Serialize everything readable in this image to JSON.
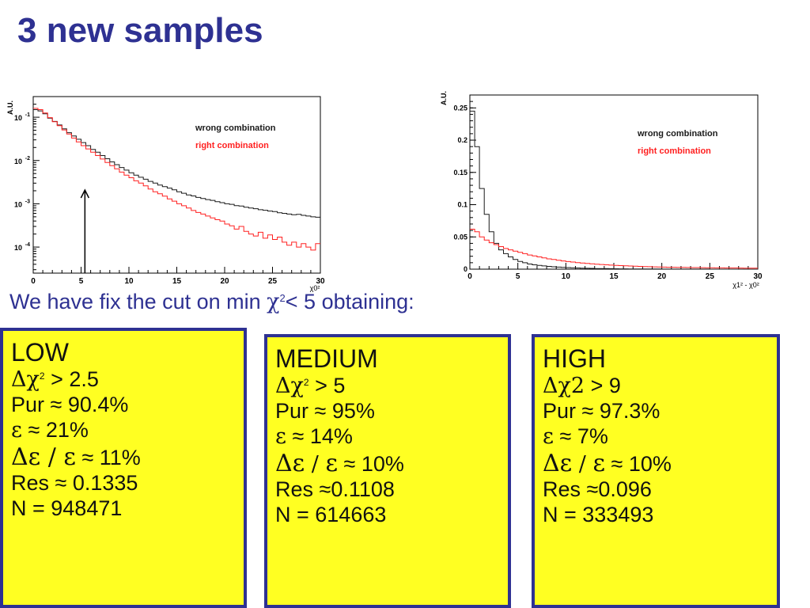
{
  "slide": {
    "title": "3 new samples",
    "subtitle": {
      "text_before": "We have fix the cut on min ",
      "chi": "χ",
      "exponent": "2",
      "text_after": "< 5 obtaining:"
    }
  },
  "chart_data": [
    {
      "type": "line",
      "ylabel": "A.U.",
      "xlabel": "χ0²",
      "yscale": "log",
      "xlim": [
        0,
        30
      ],
      "ylim": [
        2.5e-05,
        0.3
      ],
      "xticks": [
        0,
        5,
        10,
        15,
        20,
        25,
        30
      ],
      "xtick_labels": [
        "0",
        "5",
        "10",
        "15",
        "20",
        "25",
        "30"
      ],
      "ytick_values": [
        0.1,
        0.01,
        0.001,
        0.0001
      ],
      "ytick_labels": [
        {
          "base": "10",
          "exp": "-1"
        },
        {
          "base": "10",
          "exp": "-2"
        },
        {
          "base": "10",
          "exp": "-3"
        },
        {
          "base": "10",
          "exp": "-4"
        }
      ],
      "legend_placement": "top-right",
      "annotation": {
        "type": "arrow",
        "x": 5.4
      },
      "series": [
        {
          "name": "wrong combination",
          "color": "#1a1a1a",
          "x": [
            0,
            0.5,
            1,
            1.5,
            2,
            2.5,
            3,
            3.5,
            4,
            4.5,
            5,
            5.5,
            6,
            6.5,
            7,
            7.5,
            8,
            8.5,
            9,
            9.5,
            10,
            10.5,
            11,
            11.5,
            12,
            12.5,
            13,
            13.5,
            14,
            14.5,
            15,
            15.5,
            16,
            16.5,
            17,
            17.5,
            18,
            18.5,
            19,
            19.5,
            20,
            20.5,
            21,
            21.5,
            22,
            22.5,
            23,
            23.5,
            24,
            24.5,
            25,
            25.5,
            26,
            26.5,
            27,
            27.5,
            28,
            28.5,
            29,
            29.5
          ],
          "values": [
            0.15,
            0.14,
            0.12,
            0.095,
            0.08,
            0.066,
            0.054,
            0.044,
            0.037,
            0.031,
            0.026,
            0.022,
            0.018,
            0.0155,
            0.013,
            0.011,
            0.0093,
            0.008,
            0.0069,
            0.006,
            0.0052,
            0.0046,
            0.0041,
            0.0037,
            0.0033,
            0.003,
            0.0027,
            0.0025,
            0.0023,
            0.0021,
            0.0019,
            0.00175,
            0.0016,
            0.00152,
            0.0014,
            0.00132,
            0.00125,
            0.0012,
            0.00112,
            0.00106,
            0.001,
            0.00097,
            0.00091,
            0.00089,
            0.00083,
            0.0008,
            0.00077,
            0.00073,
            0.00071,
            0.00068,
            0.00066,
            0.00062,
            0.0006,
            0.00058,
            0.00056,
            0.00057,
            0.00054,
            0.00052,
            0.0005,
            0.00049
          ]
        },
        {
          "name": "right combination",
          "color": "#ff2020",
          "x": [
            0,
            0.5,
            1,
            1.5,
            2,
            2.5,
            3,
            3.5,
            4,
            4.5,
            5,
            5.5,
            6,
            6.5,
            7,
            7.5,
            8,
            8.5,
            9,
            9.5,
            10,
            10.5,
            11,
            11.5,
            12,
            12.5,
            13,
            13.5,
            14,
            14.5,
            15,
            15.5,
            16,
            16.5,
            17,
            17.5,
            18,
            18.5,
            19,
            19.5,
            20,
            20.5,
            21,
            21.5,
            22,
            22.5,
            23,
            23.5,
            24,
            24.5,
            25,
            25.5,
            26,
            26.5,
            27,
            27.5,
            28,
            28.5,
            29,
            29.5
          ],
          "values": [
            0.16,
            0.15,
            0.125,
            0.098,
            0.079,
            0.064,
            0.051,
            0.041,
            0.033,
            0.027,
            0.022,
            0.0185,
            0.0155,
            0.013,
            0.0108,
            0.009,
            0.0076,
            0.0064,
            0.0054,
            0.0046,
            0.004,
            0.0034,
            0.003,
            0.0026,
            0.0022,
            0.0019,
            0.0017,
            0.0015,
            0.0013,
            0.00115,
            0.001,
            0.0009,
            0.0008,
            0.0007,
            0.00063,
            0.00058,
            0.00052,
            0.00047,
            0.00043,
            0.0004,
            0.00034,
            0.00031,
            0.00026,
            0.0003,
            0.00023,
            0.0002,
            0.00018,
            0.00022,
            0.00016,
            0.00019,
            0.00015,
            0.00017,
            0.00013,
            0.00011,
            0.00013,
            0.0001,
            0.00012,
            0.0001,
            8.5e-05,
            0.00012
          ]
        }
      ]
    },
    {
      "type": "line",
      "ylabel": "A.U.",
      "xlabel": "χ1² - χ0²",
      "xlim": [
        0,
        30
      ],
      "ylim": [
        0,
        0.27
      ],
      "xticks": [
        0,
        5,
        10,
        15,
        20,
        25,
        30
      ],
      "xtick_labels": [
        "0",
        "5",
        "10",
        "15",
        "20",
        "25",
        "30"
      ],
      "yticks": [
        0,
        0.05,
        0.1,
        0.15,
        0.2,
        0.25
      ],
      "ytick_labels": [
        "0",
        "0.05",
        "0.1",
        "0.15",
        "0.2",
        "0.25"
      ],
      "legend_placement": "top-right",
      "series": [
        {
          "name": "wrong combination",
          "color": "#1a1a1a",
          "x": [
            0,
            0.5,
            1,
            1.5,
            2,
            2.5,
            3,
            3.5,
            4,
            4.5,
            5,
            5.5,
            6,
            6.5,
            7,
            7.5,
            8,
            8.5,
            9,
            9.5,
            10,
            10.5,
            11,
            11.5,
            12,
            12.5,
            13,
            13.5,
            14,
            14.5,
            15,
            15.5,
            16,
            16.5,
            17,
            17.5,
            18,
            18.5,
            19,
            19.5,
            20,
            20.5,
            21,
            21.5,
            22,
            22.5,
            23,
            23.5,
            24,
            24.5,
            25,
            25.5,
            26,
            26.5,
            27,
            27.5,
            28,
            28.5,
            29,
            29.5
          ],
          "values": [
            0.245,
            0.19,
            0.125,
            0.085,
            0.058,
            0.04,
            0.03,
            0.024,
            0.019,
            0.015,
            0.012,
            0.01,
            0.008,
            0.0068,
            0.0058,
            0.005,
            0.0043,
            0.0037,
            0.0032,
            0.0028,
            0.0024,
            0.0021,
            0.0018,
            0.0016,
            0.0014,
            0.0012,
            0.001,
            0.0009,
            0.0008,
            0.0007,
            0.0006,
            0.0005,
            0.00045,
            0.0004,
            0.00035,
            0.0003,
            0.00028,
            0.00025,
            0.00022,
            0.0002,
            0.00018,
            0.00016,
            0.00014,
            0.00013,
            0.00012,
            0.0001,
            0.0001,
            9e-05,
            8e-05,
            7e-05,
            6e-05,
            6e-05,
            5e-05,
            5e-05,
            4e-05,
            4e-05,
            3e-05,
            3e-05,
            3e-05,
            2e-05
          ]
        },
        {
          "name": "right combination",
          "color": "#ff2020",
          "x": [
            0,
            0.5,
            1,
            1.5,
            2,
            2.5,
            3,
            3.5,
            4,
            4.5,
            5,
            5.5,
            6,
            6.5,
            7,
            7.5,
            8,
            8.5,
            9,
            9.5,
            10,
            10.5,
            11,
            11.5,
            12,
            12.5,
            13,
            13.5,
            14,
            14.5,
            15,
            15.5,
            16,
            16.5,
            17,
            17.5,
            18,
            18.5,
            19,
            19.5,
            20,
            20.5,
            21,
            21.5,
            22,
            22.5,
            23,
            23.5,
            24,
            24.5,
            25,
            25.5,
            26,
            26.5,
            27,
            27.5,
            28,
            28.5,
            29,
            29.5
          ],
          "values": [
            0.062,
            0.058,
            0.05,
            0.045,
            0.041,
            0.038,
            0.035,
            0.032,
            0.03,
            0.028,
            0.026,
            0.024,
            0.022,
            0.0205,
            0.019,
            0.0175,
            0.016,
            0.015,
            0.0139,
            0.0128,
            0.0118,
            0.011,
            0.0102,
            0.0095,
            0.0088,
            0.0082,
            0.0077,
            0.0072,
            0.0067,
            0.0063,
            0.0059,
            0.0055,
            0.0052,
            0.0049,
            0.0046,
            0.0043,
            0.004,
            0.0038,
            0.0036,
            0.0034,
            0.0032,
            0.003,
            0.0029,
            0.0028,
            0.0027,
            0.0026,
            0.0025,
            0.0024,
            0.0023,
            0.0022,
            0.0021,
            0.002,
            0.002,
            0.0019,
            0.0018,
            0.0018,
            0.0017,
            0.0016,
            0.0016,
            0.0015
          ]
        }
      ]
    }
  ],
  "boxes": [
    {
      "label": "LOW",
      "cut": {
        "delta": "Δ",
        "chi": "χ",
        "exp": "2",
        "text": " > 2.5"
      },
      "purity": "Pur ≈ 90.4%",
      "efficiency": {
        "symbol": "ε",
        "text": " ≈ 21%"
      },
      "rel_eff": {
        "delta_eps": "Δε",
        "slash": " / ",
        "eps": "ε",
        "text": " ≈ 11%"
      },
      "resolution": "Res ≈ 0.1335",
      "count": "N = 948471"
    },
    {
      "label": "MEDIUM",
      "cut": {
        "delta": "Δ",
        "chi": "χ",
        "exp": "2",
        "text": " > 5"
      },
      "purity": "Pur ≈ 95%",
      "efficiency": {
        "symbol": "ε",
        "text": " ≈ 14%"
      },
      "rel_eff": {
        "delta_eps": "Δε",
        "slash": " / ",
        "eps": "ε",
        "text": " ≈ 10%"
      },
      "resolution": "Res ≈0.1108",
      "count": "N = 614663"
    },
    {
      "label": "HIGH",
      "cut": {
        "delta": "Δ",
        "chi": "χ",
        "exp": "2",
        "text": " > 9"
      },
      "purity": "Pur ≈ 97.3%",
      "efficiency": {
        "symbol": "ε",
        "text": " ≈ 7%"
      },
      "rel_eff": {
        "delta_eps": "Δε",
        "slash": " / ",
        "eps": "ε",
        "text": " ≈ 10%"
      },
      "resolution": "Res ≈0.096",
      "count": "N = 333493"
    }
  ]
}
